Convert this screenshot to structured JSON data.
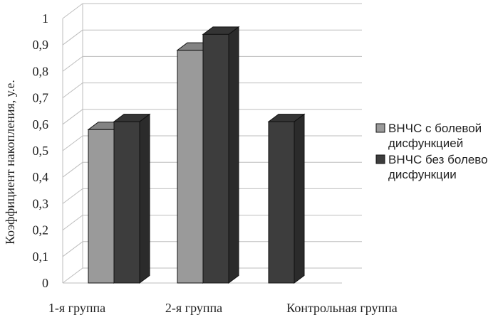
{
  "chart_data": {
    "type": "bar",
    "style": "3d-clustered-column",
    "ylabel": "Коэффициент накопления, у.е.",
    "ylim": [
      0,
      1
    ],
    "yticks": [
      "0",
      "0,1",
      "0,2",
      "0,3",
      "0,4",
      "0,5",
      "0,6",
      "0,7",
      "0,8",
      "0,9",
      "1"
    ],
    "grid": true,
    "legend_position": "right",
    "categories": [
      "1-я группа",
      "2-я группа",
      "Контрольная группа"
    ],
    "series": [
      {
        "name_lines": [
          "ВНЧС с болевой",
          "дисфункцией"
        ],
        "color": "#9a9a9a",
        "values": [
          0.58,
          0.88,
          null
        ]
      },
      {
        "name_lines": [
          "ВНЧС без болево",
          "дисфункции"
        ],
        "color": "#3d3d3d",
        "values": [
          0.61,
          0.94,
          0.61
        ]
      }
    ]
  }
}
